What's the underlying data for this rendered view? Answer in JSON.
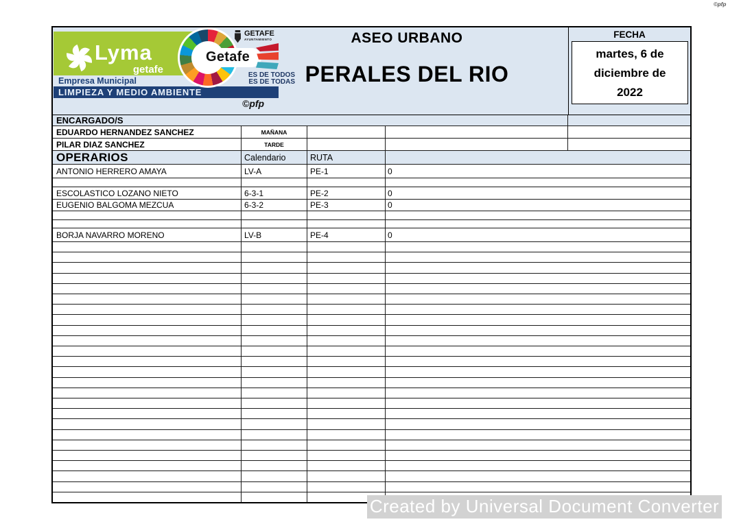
{
  "page": {
    "corner_mark": "©pfp",
    "watermark": "Created by Universal Document Converter"
  },
  "banner": {
    "lyma": {
      "brand": "Lyma",
      "brand_sub": "getafe",
      "tagline1": "Empresa Municipal",
      "tagline2": "LIMPIEZA Y MEDIO AMBIENTE",
      "credit": "©pfp"
    },
    "getafe": {
      "city": "Getafe",
      "council_line1": "GETAFE",
      "council_line2": "AYUNTAMIENTO",
      "slogan1": "ES DE TODOS",
      "slogan2": "ES DE TODAS"
    },
    "title1": "ASEO URBANO",
    "title2": "PERALES DEL RIO",
    "fecha_label": "FECHA",
    "date_line1": "martes, 6 de",
    "date_line2": "diciembre de",
    "date_line3": "2022"
  },
  "supervisors": {
    "header": "ENCARGADO/S",
    "rows": [
      {
        "name": "EDUARDO HERNANDEZ SANCHEZ",
        "shift": "MAÑANA"
      },
      {
        "name": "PILAR DIAZ SANCHEZ",
        "shift": "TARDE"
      }
    ]
  },
  "operators": {
    "title": "OPERARIOS",
    "calendar_label": "Calendario",
    "route_label": "RUTA",
    "rows": [
      {
        "name": "ANTONIO HERRERO AMAYA",
        "calendar": "LV-A",
        "route": "PE-1",
        "value": "0"
      },
      {
        "name": "",
        "calendar": "",
        "route": "",
        "value": ""
      },
      {
        "name": "ESCOLASTICO LOZANO NIETO",
        "calendar": "6-3-1",
        "route": "PE-2",
        "value": "0"
      },
      {
        "name": "EUGENIO BALGOMA MEZCUA",
        "calendar": "6-3-2",
        "route": "PE-3",
        "value": "0"
      },
      {
        "name": "",
        "calendar": "",
        "route": "",
        "value": ""
      },
      {
        "name": "",
        "calendar": "",
        "route": "",
        "value": ""
      },
      {
        "name": "BORJA NAVARRO MORENO",
        "calendar": "LV-B",
        "route": "PE-4",
        "value": "0"
      }
    ],
    "empty_row_count": 25
  },
  "colors": {
    "header_blue": "#dce6f1",
    "navy": "#1e4077",
    "brand_green": "#a5c936",
    "watermark_gray": "#d2d2d2"
  }
}
